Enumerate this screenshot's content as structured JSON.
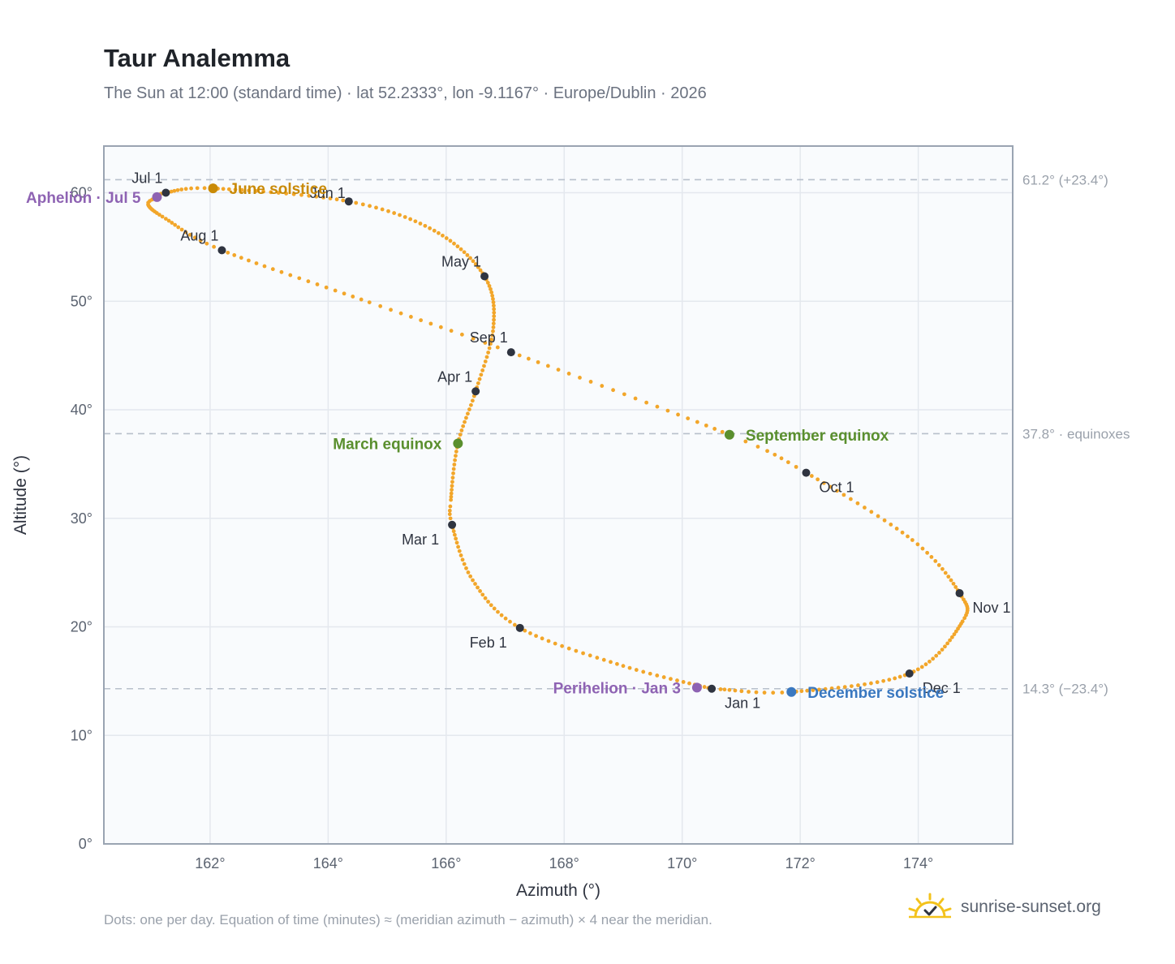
{
  "header": {
    "title": "Taur Analemma",
    "subtitle": "The Sun at 12:00 (standard time) · lat 52.2333°, lon -9.1167° · Europe/Dublin · 2026"
  },
  "footer": {
    "note": "Dots: one per day. Equation of time (minutes) ≈ (meridian azimuth − azimuth) × 4 near the meridian.",
    "brand": "sunrise-sunset.org",
    "brand_icon": "sun-icon"
  },
  "colors": {
    "curve": "#f2a62a",
    "month": "#2f3440",
    "solstice_june": "#c98a07",
    "equinox": "#5a8f2e",
    "solstice_december": "#3a78c0",
    "aphelion_perihelion": "#8e63b3",
    "grid": "#e4e8ee",
    "plot_bg": "#f9fbfd",
    "reference_line": "#b8c0cb"
  },
  "chart_data": {
    "type": "scatter",
    "title": "Taur Analemma",
    "xlabel": "Azimuth (°)",
    "ylabel": "Altitude (°)",
    "xlim": [
      160.2,
      175.6
    ],
    "ylim": [
      0,
      64.3
    ],
    "x_ticks": [
      162,
      164,
      166,
      168,
      170,
      172,
      174
    ],
    "y_ticks": [
      0,
      10,
      20,
      30,
      40,
      50,
      60
    ],
    "x_tick_labels": [
      "162°",
      "164°",
      "166°",
      "168°",
      "170°",
      "172°",
      "174°"
    ],
    "y_tick_labels": [
      "0°",
      "10°",
      "20°",
      "30°",
      "40°",
      "50°",
      "60°"
    ],
    "grid": true,
    "series": [
      {
        "path_nodes": [
          {
            "day": 0,
            "x": 170.5,
            "y": 14.3
          },
          {
            "day": 15,
            "x": 169.0,
            "y": 16.4
          },
          {
            "day": 31,
            "x": 167.25,
            "y": 19.9
          },
          {
            "day": 45,
            "x": 166.45,
            "y": 24.3
          },
          {
            "day": 59,
            "x": 166.1,
            "y": 29.4
          },
          {
            "day": 64,
            "x": 166.08,
            "y": 31.7
          },
          {
            "day": 78,
            "x": 166.2,
            "y": 36.9
          },
          {
            "day": 90,
            "x": 166.5,
            "y": 41.7
          },
          {
            "day": 105,
            "x": 166.8,
            "y": 47.6
          },
          {
            "day": 120,
            "x": 166.65,
            "y": 52.3
          },
          {
            "day": 136,
            "x": 165.8,
            "y": 56.5
          },
          {
            "day": 151,
            "x": 164.35,
            "y": 59.2
          },
          {
            "day": 171,
            "x": 162.05,
            "y": 60.4
          },
          {
            "day": 181,
            "x": 161.25,
            "y": 60.0
          },
          {
            "day": 185,
            "x": 161.1,
            "y": 59.6
          },
          {
            "day": 190,
            "x": 160.95,
            "y": 58.9
          },
          {
            "day": 200,
            "x": 161.25,
            "y": 57.6
          },
          {
            "day": 212,
            "x": 162.2,
            "y": 54.7
          },
          {
            "day": 230,
            "x": 164.7,
            "y": 49.9
          },
          {
            "day": 243,
            "x": 167.1,
            "y": 45.3
          },
          {
            "day": 265,
            "x": 170.8,
            "y": 37.7
          },
          {
            "day": 273,
            "x": 172.1,
            "y": 34.2
          },
          {
            "day": 290,
            "x": 173.9,
            "y": 28.0
          },
          {
            "day": 304,
            "x": 174.7,
            "y": 23.1
          },
          {
            "day": 315,
            "x": 174.75,
            "y": 20.5
          },
          {
            "day": 334,
            "x": 173.85,
            "y": 15.7
          },
          {
            "day": 354,
            "x": 171.85,
            "y": 14.0
          },
          {
            "day": 364,
            "x": 170.65,
            "y": 14.25
          }
        ]
      }
    ],
    "month_markers": [
      {
        "label": "Jan 1",
        "x": 170.5,
        "y": 14.3,
        "anchor": "below-right"
      },
      {
        "label": "Feb 1",
        "x": 167.25,
        "y": 19.9,
        "anchor": "below-left"
      },
      {
        "label": "Mar 1",
        "x": 166.1,
        "y": 29.4,
        "anchor": "below-left"
      },
      {
        "label": "Apr 1",
        "x": 166.5,
        "y": 41.7,
        "anchor": "above-left"
      },
      {
        "label": "May 1",
        "x": 166.65,
        "y": 52.3,
        "anchor": "above-left"
      },
      {
        "label": "Jun 1",
        "x": 164.35,
        "y": 59.2,
        "anchor": "above-center"
      },
      {
        "label": "Jul 1",
        "x": 161.25,
        "y": 60.0,
        "anchor": "above-left"
      },
      {
        "label": "Aug 1",
        "x": 162.2,
        "y": 54.7,
        "anchor": "above-left"
      },
      {
        "label": "Sep 1",
        "x": 167.1,
        "y": 45.3,
        "anchor": "above-left"
      },
      {
        "label": "Oct 1",
        "x": 172.1,
        "y": 34.2,
        "anchor": "below-right"
      },
      {
        "label": "Nov 1",
        "x": 174.7,
        "y": 23.1,
        "anchor": "below-right"
      },
      {
        "label": "Dec 1",
        "x": 173.85,
        "y": 15.7,
        "anchor": "below-right"
      }
    ],
    "events": [
      {
        "label": "June solstice",
        "x": 162.05,
        "y": 60.4,
        "color_key": "solstice_june",
        "anchor": "right"
      },
      {
        "label": "Aphelion · Jul 5",
        "x": 161.1,
        "y": 59.6,
        "color_key": "aphelion_perihelion",
        "anchor": "left"
      },
      {
        "label": "March equinox",
        "x": 166.2,
        "y": 36.9,
        "color_key": "equinox",
        "anchor": "left"
      },
      {
        "label": "September equinox",
        "x": 170.8,
        "y": 37.7,
        "color_key": "equinox",
        "anchor": "right"
      },
      {
        "label": "Perihelion · Jan 3",
        "x": 170.25,
        "y": 14.4,
        "color_key": "aphelion_perihelion",
        "anchor": "left"
      },
      {
        "label": "December solstice",
        "x": 171.85,
        "y": 14.0,
        "color_key": "solstice_december",
        "anchor": "right"
      }
    ],
    "reference_lines": [
      {
        "y": 61.2,
        "label": "61.2° (+23.4°)"
      },
      {
        "y": 37.8,
        "label": "37.8° · equinoxes"
      },
      {
        "y": 14.3,
        "label": "14.3° (−23.4°)"
      }
    ]
  }
}
